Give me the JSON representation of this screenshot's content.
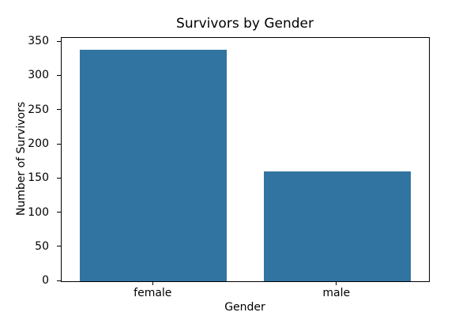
{
  "chart_data": {
    "type": "bar",
    "title": "Survivors by Gender",
    "xlabel": "Gender",
    "ylabel": "Number of Survivors",
    "categories": [
      "female",
      "male"
    ],
    "values": [
      339,
      161
    ],
    "ylim": [
      0,
      356
    ],
    "yticks": [
      0,
      50,
      100,
      150,
      200,
      250,
      300,
      350
    ],
    "bar_color": "#3274a1",
    "axis_color": "#000000",
    "background_color": "#ffffff",
    "grid": false,
    "legend_position": "none"
  }
}
